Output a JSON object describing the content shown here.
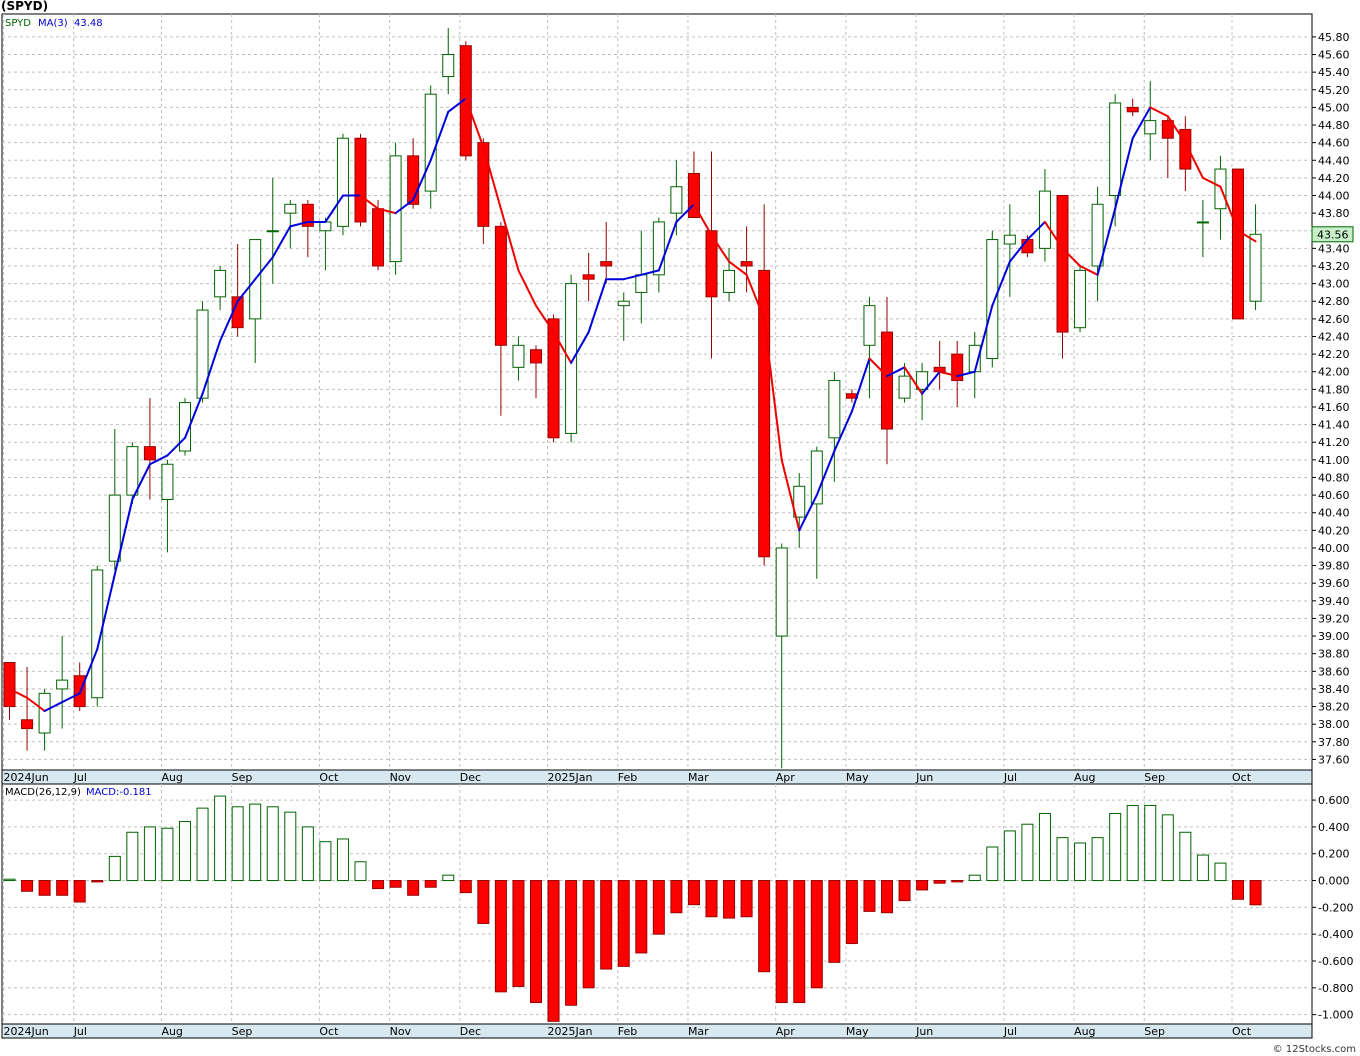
{
  "symbol_title": "(SPYD)",
  "legend": {
    "symbol": "SPYD",
    "ma_label": "MA(3)",
    "ma_value": "43.48"
  },
  "macd_legend": {
    "label": "MACD(26,12,9)",
    "value_label": "MACD:-0.181"
  },
  "last_price": "43.56",
  "watermark": "© 12Stocks.com",
  "colors": {
    "up": "#006400",
    "down": "#ff0000",
    "ma_up": "#0000dd",
    "ma_down": "#ee0000",
    "grid": "#c0c0c0",
    "axis_band": "#d8e8f0",
    "price_box": "#c8f0c8"
  },
  "chart_data": [
    {
      "type": "candlestick",
      "title": "(SPYD)",
      "interval": "weekly",
      "y_ticks": [
        "37.60",
        "37.80",
        "38.00",
        "38.20",
        "38.40",
        "38.60",
        "38.80",
        "39.00",
        "39.20",
        "39.40",
        "39.60",
        "39.80",
        "40.00",
        "40.20",
        "40.40",
        "40.60",
        "40.80",
        "41.00",
        "41.20",
        "41.40",
        "41.60",
        "41.80",
        "42.00",
        "42.20",
        "42.40",
        "42.60",
        "42.80",
        "43.00",
        "43.20",
        "43.40",
        "43.60",
        "43.80",
        "44.00",
        "44.20",
        "44.40",
        "44.60",
        "44.80",
        "45.00",
        "45.20",
        "45.40",
        "45.60",
        "45.80"
      ],
      "ylim": [
        37.48,
        46.06
      ],
      "x_labels": [
        "2024Jun",
        "Jul",
        "Aug",
        "Sep",
        "Oct",
        "Nov",
        "Dec",
        "2025Jan",
        "Feb",
        "Mar",
        "Apr",
        "May",
        "Jun",
        "Jul",
        "Aug",
        "Sep",
        "Oct"
      ],
      "x_label_weeks": [
        0,
        4,
        9,
        13,
        18,
        22,
        26,
        31,
        35,
        39,
        44,
        48,
        52,
        57,
        61,
        65,
        70
      ],
      "candles": [
        {
          "o": 38.7,
          "h": 38.7,
          "l": 38.05,
          "c": 38.2
        },
        {
          "o": 38.05,
          "h": 38.65,
          "l": 37.7,
          "c": 37.95
        },
        {
          "o": 37.9,
          "h": 38.4,
          "l": 37.7,
          "c": 38.35
        },
        {
          "o": 38.4,
          "h": 39.0,
          "l": 37.95,
          "c": 38.5
        },
        {
          "o": 38.55,
          "h": 38.7,
          "l": 38.15,
          "c": 38.2
        },
        {
          "o": 38.3,
          "h": 39.8,
          "l": 38.2,
          "c": 39.75
        },
        {
          "o": 39.85,
          "h": 41.35,
          "l": 39.75,
          "c": 40.6
        },
        {
          "o": 40.6,
          "h": 41.2,
          "l": 40.5,
          "c": 41.15
        },
        {
          "o": 41.15,
          "h": 41.7,
          "l": 40.55,
          "c": 41.0
        },
        {
          "o": 40.55,
          "h": 41.0,
          "l": 39.95,
          "c": 40.95
        },
        {
          "o": 41.1,
          "h": 41.7,
          "l": 41.05,
          "c": 41.65
        },
        {
          "o": 41.7,
          "h": 42.8,
          "l": 41.65,
          "c": 42.7
        },
        {
          "o": 42.85,
          "h": 43.2,
          "l": 42.7,
          "c": 43.15
        },
        {
          "o": 42.85,
          "h": 43.45,
          "l": 42.4,
          "c": 42.5
        },
        {
          "o": 42.6,
          "h": 43.5,
          "l": 42.1,
          "c": 43.5
        },
        {
          "o": 43.6,
          "h": 44.2,
          "l": 43.0,
          "c": 43.6
        },
        {
          "o": 43.8,
          "h": 43.95,
          "l": 43.4,
          "c": 43.9
        },
        {
          "o": 43.9,
          "h": 43.95,
          "l": 43.3,
          "c": 43.65
        },
        {
          "o": 43.6,
          "h": 43.75,
          "l": 43.15,
          "c": 43.7
        },
        {
          "o": 43.65,
          "h": 44.7,
          "l": 43.55,
          "c": 44.65
        },
        {
          "o": 44.65,
          "h": 44.7,
          "l": 43.65,
          "c": 43.7
        },
        {
          "o": 43.85,
          "h": 43.95,
          "l": 43.15,
          "c": 43.2
        },
        {
          "o": 43.25,
          "h": 44.6,
          "l": 43.1,
          "c": 44.45
        },
        {
          "o": 44.45,
          "h": 44.65,
          "l": 43.85,
          "c": 43.9
        },
        {
          "o": 44.05,
          "h": 45.25,
          "l": 43.85,
          "c": 45.15
        },
        {
          "o": 45.35,
          "h": 45.9,
          "l": 45.15,
          "c": 45.6
        },
        {
          "o": 45.7,
          "h": 45.75,
          "l": 44.4,
          "c": 44.45
        },
        {
          "o": 44.6,
          "h": 44.65,
          "l": 43.45,
          "c": 43.65
        },
        {
          "o": 43.65,
          "h": 43.7,
          "l": 41.5,
          "c": 42.3
        },
        {
          "o": 42.05,
          "h": 42.4,
          "l": 41.9,
          "c": 42.3
        },
        {
          "o": 42.25,
          "h": 42.3,
          "l": 41.7,
          "c": 42.1
        },
        {
          "o": 42.6,
          "h": 42.65,
          "l": 41.2,
          "c": 41.25
        },
        {
          "o": 41.3,
          "h": 43.1,
          "l": 41.2,
          "c": 43.0
        },
        {
          "o": 43.1,
          "h": 43.35,
          "l": 42.8,
          "c": 43.05
        },
        {
          "o": 43.25,
          "h": 43.7,
          "l": 43.0,
          "c": 43.2
        },
        {
          "o": 42.75,
          "h": 42.9,
          "l": 42.35,
          "c": 42.8
        },
        {
          "o": 42.9,
          "h": 43.6,
          "l": 42.55,
          "c": 43.1
        },
        {
          "o": 43.1,
          "h": 43.75,
          "l": 42.9,
          "c": 43.7
        },
        {
          "o": 43.8,
          "h": 44.4,
          "l": 43.55,
          "c": 44.1
        },
        {
          "o": 44.25,
          "h": 44.5,
          "l": 43.75,
          "c": 43.75
        },
        {
          "o": 43.6,
          "h": 44.5,
          "l": 42.15,
          "c": 42.85
        },
        {
          "o": 42.9,
          "h": 43.4,
          "l": 42.8,
          "c": 43.15
        },
        {
          "o": 43.25,
          "h": 43.65,
          "l": 42.9,
          "c": 43.2
        },
        {
          "o": 43.15,
          "h": 43.9,
          "l": 39.8,
          "c": 39.9
        },
        {
          "o": 39.0,
          "h": 40.05,
          "l": 37.5,
          "c": 40.0
        },
        {
          "o": 40.35,
          "h": 40.85,
          "l": 40.0,
          "c": 40.7
        },
        {
          "o": 40.5,
          "h": 41.15,
          "l": 39.65,
          "c": 41.1
        },
        {
          "o": 41.25,
          "h": 42.0,
          "l": 40.75,
          "c": 41.9
        },
        {
          "o": 41.75,
          "h": 41.8,
          "l": 41.65,
          "c": 41.7
        },
        {
          "o": 42.3,
          "h": 42.85,
          "l": 41.7,
          "c": 42.75
        },
        {
          "o": 42.45,
          "h": 42.85,
          "l": 40.95,
          "c": 41.35
        },
        {
          "o": 41.7,
          "h": 42.1,
          "l": 41.65,
          "c": 41.95
        },
        {
          "o": 41.8,
          "h": 42.1,
          "l": 41.45,
          "c": 42.0
        },
        {
          "o": 42.05,
          "h": 42.35,
          "l": 41.8,
          "c": 42.0
        },
        {
          "o": 42.2,
          "h": 42.35,
          "l": 41.6,
          "c": 41.9
        },
        {
          "o": 42.0,
          "h": 42.45,
          "l": 41.7,
          "c": 42.3
        },
        {
          "o": 42.15,
          "h": 43.6,
          "l": 42.05,
          "c": 43.5
        },
        {
          "o": 43.45,
          "h": 43.9,
          "l": 42.85,
          "c": 43.55
        },
        {
          "o": 43.5,
          "h": 43.55,
          "l": 43.3,
          "c": 43.35
        },
        {
          "o": 43.4,
          "h": 44.3,
          "l": 43.25,
          "c": 44.05
        },
        {
          "o": 44.0,
          "h": 44.0,
          "l": 42.15,
          "c": 42.45
        },
        {
          "o": 42.5,
          "h": 43.2,
          "l": 42.45,
          "c": 43.15
        },
        {
          "o": 43.2,
          "h": 44.1,
          "l": 42.8,
          "c": 43.9
        },
        {
          "o": 44.0,
          "h": 45.15,
          "l": 43.65,
          "c": 45.05
        },
        {
          "o": 45.0,
          "h": 45.1,
          "l": 44.9,
          "c": 44.95
        },
        {
          "o": 44.7,
          "h": 45.3,
          "l": 44.4,
          "c": 44.85
        },
        {
          "o": 44.85,
          "h": 44.9,
          "l": 44.2,
          "c": 44.65
        },
        {
          "o": 44.75,
          "h": 44.9,
          "l": 44.05,
          "c": 44.3
        },
        {
          "o": 43.7,
          "h": 43.95,
          "l": 43.3,
          "c": 43.7
        },
        {
          "o": 43.85,
          "h": 44.45,
          "l": 43.5,
          "c": 44.3
        },
        {
          "o": 44.3,
          "h": 44.3,
          "l": 42.6,
          "c": 42.6
        },
        {
          "o": 42.8,
          "h": 43.9,
          "l": 42.7,
          "c": 43.56
        }
      ],
      "ma": [
        38.4,
        38.3,
        38.15,
        38.25,
        38.35,
        38.85,
        39.7,
        40.55,
        40.95,
        41.05,
        41.25,
        41.75,
        42.35,
        42.8,
        43.05,
        43.3,
        43.65,
        43.7,
        43.7,
        44.0,
        44.0,
        43.85,
        43.8,
        43.95,
        44.4,
        44.95,
        45.1,
        44.55,
        43.85,
        43.15,
        42.75,
        42.45,
        42.1,
        42.45,
        43.05,
        43.05,
        43.1,
        43.15,
        43.7,
        43.9,
        43.55,
        43.25,
        43.1,
        42.6,
        41.0,
        40.2,
        40.6,
        41.1,
        41.55,
        42.15,
        41.95,
        42.05,
        41.75,
        42.0,
        41.95,
        42.0,
        42.75,
        43.25,
        43.5,
        43.7,
        43.4,
        43.2,
        43.1,
        43.85,
        44.65,
        45.0,
        44.9,
        44.6,
        44.2,
        44.1,
        43.6,
        43.48
      ]
    },
    {
      "type": "bar",
      "title": "MACD(26,12,9)",
      "y_ticks": [
        "-1.000",
        "-0.800",
        "-0.600",
        "-0.400",
        "-0.200",
        "0.000",
        "0.200",
        "0.400",
        "0.600"
      ],
      "ylim": [
        -1.07,
        0.72
      ],
      "x_labels": [
        "2024Jun",
        "Jul",
        "Aug",
        "Sep",
        "Oct",
        "Nov",
        "Dec",
        "2025Jan",
        "Feb",
        "Mar",
        "Apr",
        "May",
        "Jun",
        "Jul",
        "Aug",
        "Sep",
        "Oct"
      ],
      "values": [
        0.01,
        -0.08,
        -0.11,
        -0.11,
        -0.16,
        -0.01,
        0.18,
        0.36,
        0.4,
        0.39,
        0.44,
        0.54,
        0.63,
        0.55,
        0.57,
        0.55,
        0.51,
        0.4,
        0.29,
        0.31,
        0.14,
        -0.06,
        -0.05,
        -0.11,
        -0.05,
        0.04,
        -0.09,
        -0.32,
        -0.83,
        -0.79,
        -0.91,
        -1.05,
        -0.93,
        -0.8,
        -0.66,
        -0.64,
        -0.54,
        -0.4,
        -0.24,
        -0.18,
        -0.27,
        -0.28,
        -0.27,
        -0.68,
        -0.91,
        -0.91,
        -0.8,
        -0.61,
        -0.47,
        -0.23,
        -0.24,
        -0.15,
        -0.07,
        -0.02,
        -0.01,
        0.04,
        0.25,
        0.37,
        0.42,
        0.5,
        0.32,
        0.28,
        0.32,
        0.5,
        0.56,
        0.56,
        0.49,
        0.36,
        0.19,
        0.13,
        -0.14,
        -0.181
      ]
    }
  ]
}
